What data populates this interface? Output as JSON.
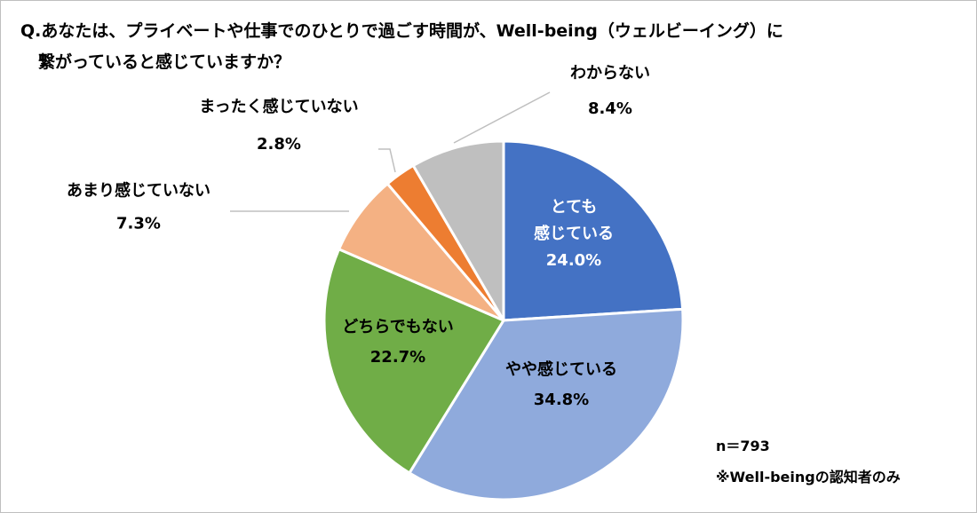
{
  "chart_data": {
    "type": "pie",
    "title_lines": [
      "Q.あなたは、プライベートや仕事でのひとりで過ごす時間が、Well-being（ウェルビーイング）に",
      "繋がっていると感じていますか？"
    ],
    "slices": [
      {
        "label": "とても感じている",
        "label_lines": [
          "とても",
          "感じている"
        ],
        "value": 24.0,
        "value_label": "24.0%",
        "color": "#4472C4",
        "label_color": "#FFFFFF",
        "label_position": "inside"
      },
      {
        "label": "やや感じている",
        "label_lines": [
          "やや感じている"
        ],
        "value": 34.8,
        "value_label": "34.8%",
        "color": "#8FAADC",
        "label_color": "#000000",
        "label_position": "inside"
      },
      {
        "label": "どちらでもない",
        "label_lines": [
          "どちらでもない"
        ],
        "value": 22.7,
        "value_label": "22.7%",
        "color": "#70AD47",
        "label_color": "#000000",
        "label_position": "inside"
      },
      {
        "label": "あまり感じていない",
        "label_lines": [
          "あまり感じていない"
        ],
        "value": 7.3,
        "value_label": "7.3%",
        "color": "#F4B183",
        "label_color": "#000000",
        "label_position": "outside"
      },
      {
        "label": "まったく感じていない",
        "label_lines": [
          "まったく感じていない"
        ],
        "value": 2.8,
        "value_label": "2.8%",
        "color": "#ED7D31",
        "label_color": "#000000",
        "label_position": "outside"
      },
      {
        "label": "わからない",
        "label_lines": [
          "わからない"
        ],
        "value": 8.4,
        "value_label": "8.4%",
        "color": "#BFBFBF",
        "label_color": "#000000",
        "label_position": "outside"
      }
    ],
    "start_angle": "12 o'clock",
    "direction": "clockwise",
    "legend": "none",
    "notes": [
      "n＝793",
      "※Well-beingの認知者のみ"
    ]
  }
}
